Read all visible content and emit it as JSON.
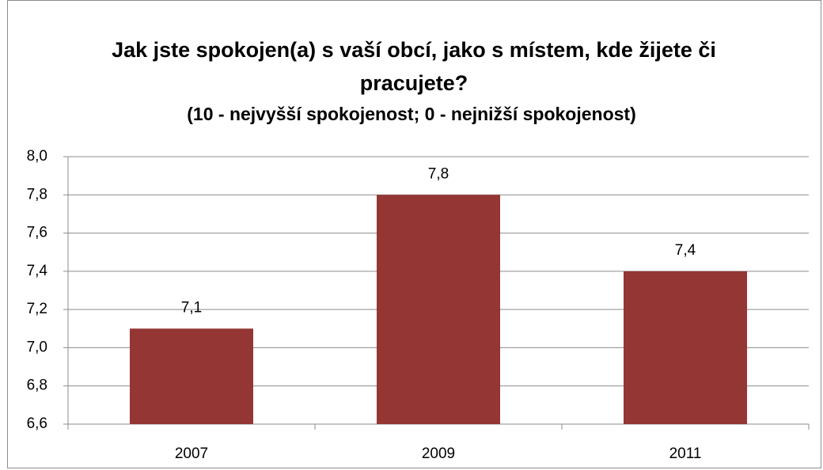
{
  "chart_data": {
    "type": "bar",
    "title": "Jak jste spokojen(a) s vaší obcí, jako s místem, kde žijete či pracujete?",
    "subtitle": "(10 - nejvyšší spokojenost; 0 - nejnižší spokojenost)",
    "categories": [
      "2007",
      "2009",
      "2011"
    ],
    "values": [
      7.1,
      7.8,
      7.4
    ],
    "value_labels": [
      "7,1",
      "7,8",
      "7,4"
    ],
    "color": "#943634",
    "ylim": [
      6.6,
      8.0
    ],
    "yticks": [
      {
        "value": 6.6,
        "label": "6,6"
      },
      {
        "value": 6.8,
        "label": "6,8"
      },
      {
        "value": 7.0,
        "label": "7,0"
      },
      {
        "value": 7.2,
        "label": "7,2"
      },
      {
        "value": 7.4,
        "label": "7,4"
      },
      {
        "value": 7.6,
        "label": "7,6"
      },
      {
        "value": 7.8,
        "label": "7,8"
      },
      {
        "value": 8.0,
        "label": "8,0"
      }
    ],
    "grid": true
  }
}
